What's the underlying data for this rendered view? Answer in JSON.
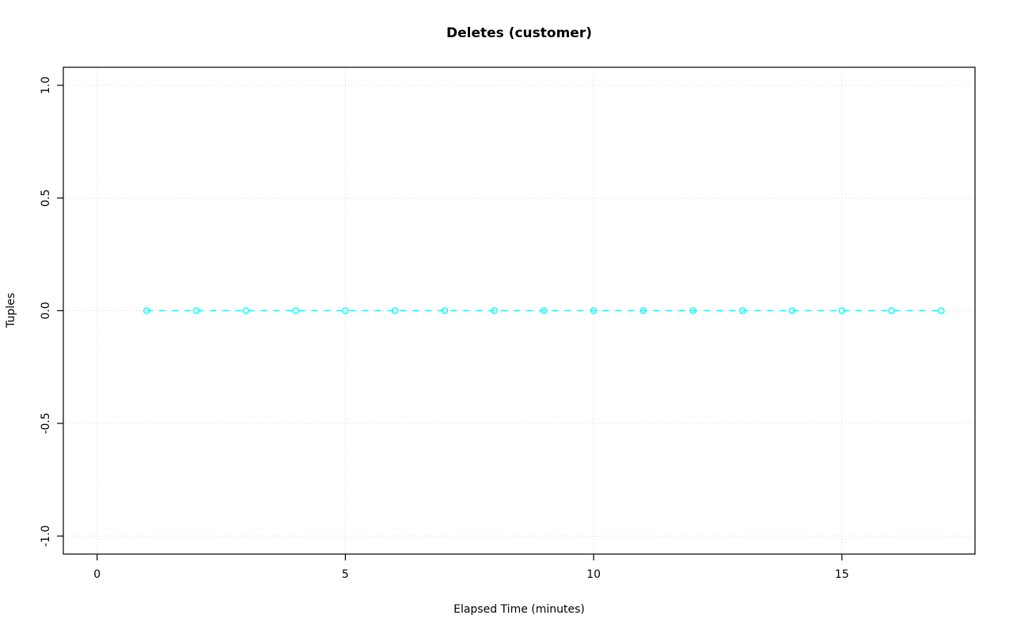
{
  "chart_data": {
    "type": "line",
    "title": "Deletes (customer)",
    "xlabel": "Elapsed Time (minutes)",
    "ylabel": "Tuples",
    "x": [
      1,
      2,
      3,
      4,
      5,
      6,
      7,
      8,
      9,
      10,
      11,
      12,
      13,
      14,
      15,
      16,
      17
    ],
    "y": [
      0,
      0,
      0,
      0,
      0,
      0,
      0,
      0,
      0,
      0,
      0,
      0,
      0,
      0,
      0,
      0,
      0
    ],
    "xlim": [
      -0.68,
      17.68
    ],
    "ylim": [
      -1.08,
      1.08
    ],
    "xticks": [
      0,
      5,
      10,
      15
    ],
    "xtick_labels": [
      "0",
      "5",
      "10",
      "15"
    ],
    "yticks": [
      -1.0,
      -0.5,
      0.0,
      0.5,
      1.0
    ],
    "ytick_labels": [
      "-1.0",
      "-0.5",
      "0.0",
      "0.5",
      "1.0"
    ],
    "grid": true,
    "legend_position": "none",
    "line_style": "dashed",
    "marker": "open-circle",
    "colors": {
      "series": "#00FFFF",
      "grid": "#D6D6D6",
      "axis": "#000000",
      "background": "#FFFFFF"
    }
  }
}
